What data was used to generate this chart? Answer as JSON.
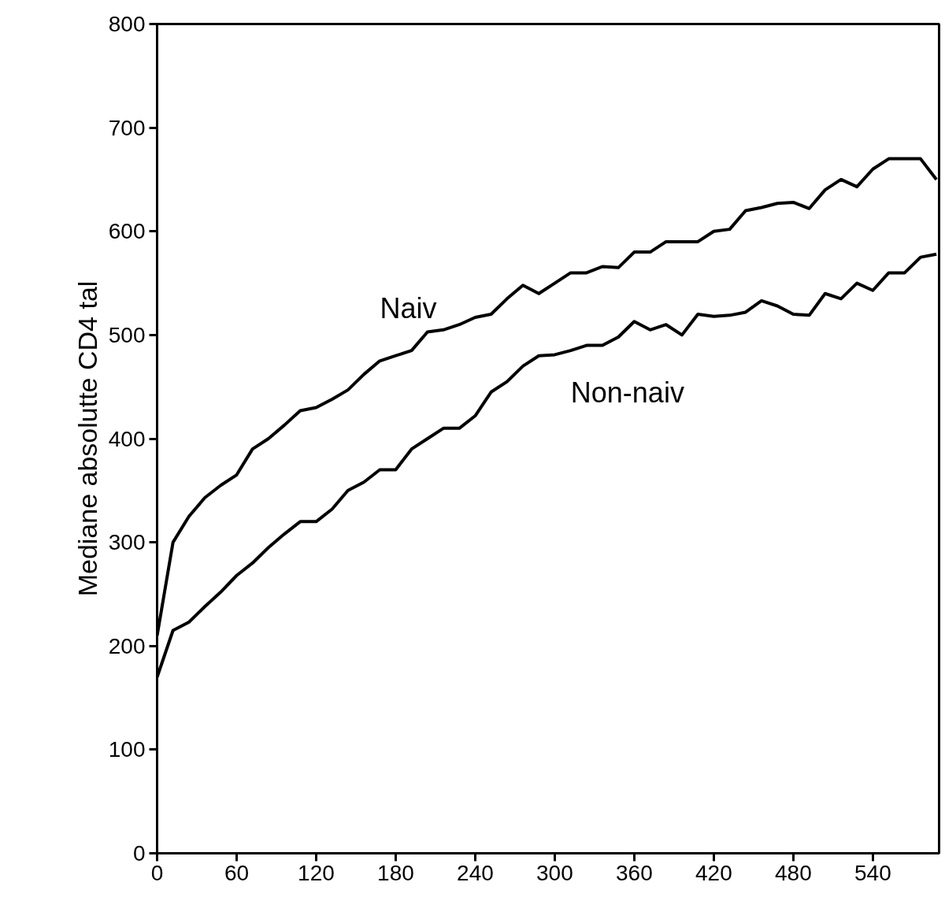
{
  "chart_data": {
    "type": "line",
    "ylabel": "Mediane absolutte CD4 tal",
    "x": [
      0,
      12,
      24,
      36,
      48,
      60,
      72,
      84,
      96,
      108,
      120,
      132,
      144,
      156,
      168,
      180,
      192,
      204,
      216,
      228,
      240,
      252,
      264,
      276,
      288,
      300,
      312,
      324,
      336,
      348,
      360,
      372,
      384,
      396,
      408,
      420,
      432,
      444,
      456,
      468,
      480,
      492,
      504,
      516,
      528,
      540,
      552,
      564,
      576,
      588
    ],
    "series": [
      {
        "name": "Naiv",
        "color": "#000000",
        "values": [
          210,
          300,
          325,
          343,
          355,
          365,
          390,
          400,
          413,
          427,
          430,
          438,
          447,
          462,
          475,
          480,
          485,
          503,
          505,
          510,
          517,
          520,
          535,
          548,
          540,
          550,
          560,
          560,
          566,
          565,
          580,
          580,
          590,
          590,
          590,
          600,
          602,
          620,
          623,
          627,
          628,
          622,
          640,
          650,
          643,
          660,
          670,
          670,
          670,
          650
        ]
      },
      {
        "name": "Non-naiv",
        "color": "#000000",
        "values": [
          170,
          215,
          223,
          238,
          252,
          268,
          280,
          295,
          308,
          320,
          320,
          332,
          350,
          358,
          370,
          370,
          390,
          400,
          410,
          410,
          422,
          445,
          455,
          470,
          480,
          481,
          485,
          490,
          490,
          498,
          513,
          505,
          510,
          500,
          520,
          518,
          519,
          522,
          533,
          528,
          520,
          519,
          540,
          535,
          550,
          543,
          560,
          560,
          575,
          578
        ]
      }
    ],
    "xlim": [
      0,
      590
    ],
    "xticks": [
      0,
      60,
      120,
      180,
      240,
      300,
      360,
      420,
      480,
      540
    ],
    "ylim": [
      0,
      800
    ],
    "yticks": [
      0,
      100,
      200,
      300,
      400,
      500,
      600,
      700,
      800
    ],
    "grid": false,
    "line_style": "solid",
    "marker": "none"
  }
}
